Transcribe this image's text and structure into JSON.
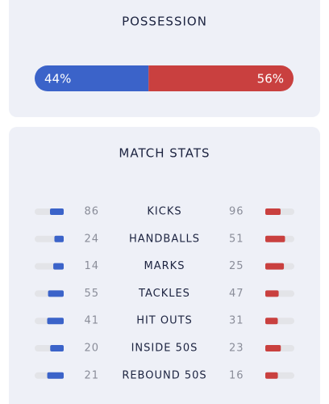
{
  "possession": {
    "title": "POSSESSION",
    "values": [
      44,
      56
    ],
    "value_labels": [
      "44%",
      "56%"
    ],
    "colors": [
      "#3b63c9",
      "#c9403f"
    ]
  },
  "match_stats": {
    "title": "MATCH STATS",
    "home_color": "#3b63c9",
    "away_color": "#c9403f",
    "rows": [
      {
        "name": "KICKS",
        "home": 86,
        "away": 96
      },
      {
        "name": "HANDBALLS",
        "home": 24,
        "away": 51
      },
      {
        "name": "MARKS",
        "home": 14,
        "away": 25
      },
      {
        "name": "TACKLES",
        "home": 55,
        "away": 47
      },
      {
        "name": "HIT OUTS",
        "home": 41,
        "away": 31
      },
      {
        "name": "INSIDE 50S",
        "home": 20,
        "away": 23
      },
      {
        "name": "REBOUND 50S",
        "home": 21,
        "away": 16
      }
    ]
  }
}
